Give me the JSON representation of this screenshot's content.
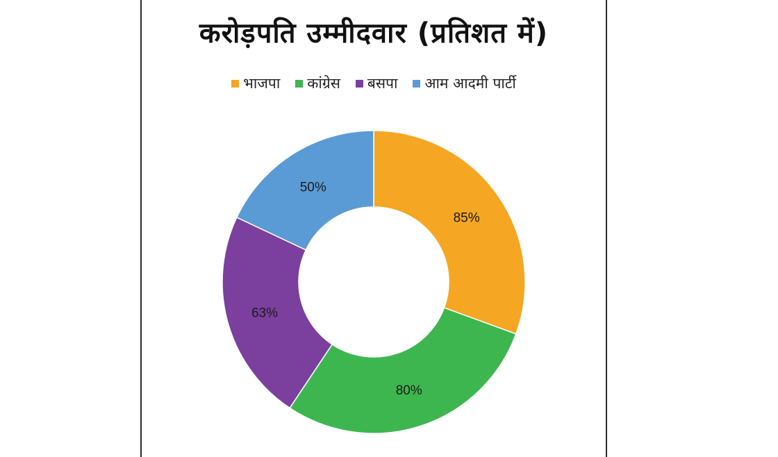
{
  "chart_data": {
    "type": "pie",
    "title": "करोड़पति उम्मीदवार (प्रतिशत में)",
    "legend_position": "top",
    "categories": [
      "भाजपा",
      "कांग्रेस",
      "बसपा",
      "आम आदमी पार्टी"
    ],
    "values": [
      85,
      80,
      63,
      50
    ],
    "value_labels": [
      "85%",
      "80%",
      "63%",
      "50%"
    ],
    "colors": [
      "#F5A623",
      "#3EB64F",
      "#7B3F9E",
      "#5B9BD5"
    ],
    "hole": "donut"
  }
}
